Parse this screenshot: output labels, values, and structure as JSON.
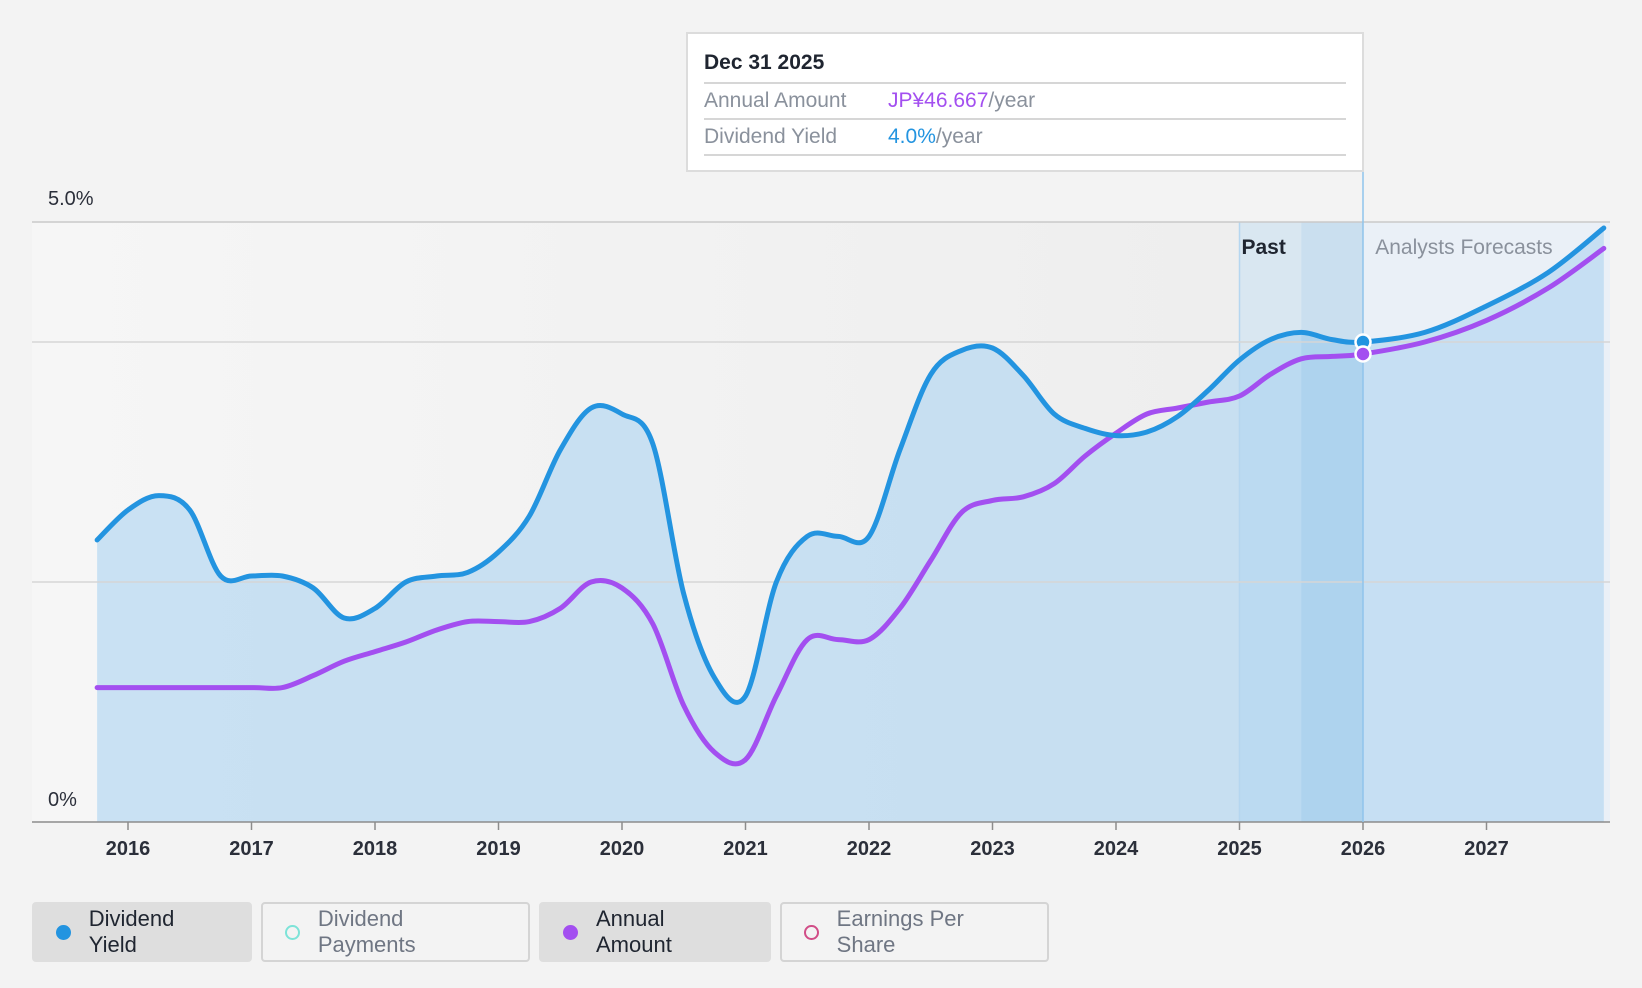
{
  "tooltip": {
    "date": "Dec 31 2025",
    "rows": [
      {
        "label": "Annual Amount",
        "value": "JP¥46.667",
        "unit": "/year"
      },
      {
        "label": "Dividend Yield",
        "value": "4.0%",
        "unit": "/year"
      }
    ]
  },
  "legend": [
    {
      "label": "Dividend Yield",
      "active": true,
      "color": "#2394e0",
      "filled": true
    },
    {
      "label": "Dividend Payments",
      "active": false,
      "color": "#7de3d8",
      "filled": false
    },
    {
      "label": "Annual Amount",
      "active": true,
      "color": "#a34ff0",
      "filled": true
    },
    {
      "label": "Earnings Per Share",
      "active": false,
      "color": "#d14d87",
      "filled": false
    }
  ],
  "chart_data": {
    "type": "line",
    "y_axis": {
      "min_label": "0%",
      "max_label": "5.0%",
      "ylim": [
        0,
        5.0
      ]
    },
    "x_ticks": [
      "2016",
      "2017",
      "2018",
      "2019",
      "2020",
      "2021",
      "2022",
      "2023",
      "2024",
      "2025",
      "2026",
      "2027"
    ],
    "xlim": [
      2015.5,
      2027.95
    ],
    "bands": {
      "past_label": "Past",
      "forecast_label": "Analysts Forecasts",
      "past_start": 2025.0,
      "forecast_start": 2025.5,
      "forecast_end": 2026.0
    },
    "cursor_x": 2026.0,
    "series": [
      {
        "name": "Dividend Yield",
        "color": "#2394e0",
        "points": [
          [
            2015.75,
            2.35
          ],
          [
            2016.0,
            2.6
          ],
          [
            2016.25,
            2.72
          ],
          [
            2016.5,
            2.6
          ],
          [
            2016.75,
            2.05
          ],
          [
            2017.0,
            2.05
          ],
          [
            2017.25,
            2.05
          ],
          [
            2017.5,
            1.95
          ],
          [
            2017.75,
            1.7
          ],
          [
            2018.0,
            1.78
          ],
          [
            2018.25,
            2.0
          ],
          [
            2018.5,
            2.05
          ],
          [
            2018.75,
            2.08
          ],
          [
            2019.0,
            2.25
          ],
          [
            2019.25,
            2.55
          ],
          [
            2019.5,
            3.1
          ],
          [
            2019.75,
            3.45
          ],
          [
            2020.0,
            3.4
          ],
          [
            2020.25,
            3.15
          ],
          [
            2020.5,
            1.9
          ],
          [
            2020.75,
            1.2
          ],
          [
            2021.0,
            1.05
          ],
          [
            2021.25,
            2.0
          ],
          [
            2021.5,
            2.38
          ],
          [
            2021.75,
            2.38
          ],
          [
            2022.0,
            2.38
          ],
          [
            2022.25,
            3.1
          ],
          [
            2022.5,
            3.73
          ],
          [
            2022.75,
            3.93
          ],
          [
            2023.0,
            3.95
          ],
          [
            2023.25,
            3.72
          ],
          [
            2023.5,
            3.4
          ],
          [
            2023.75,
            3.28
          ],
          [
            2024.0,
            3.22
          ],
          [
            2024.25,
            3.25
          ],
          [
            2024.5,
            3.38
          ],
          [
            2024.75,
            3.6
          ],
          [
            2025.0,
            3.85
          ],
          [
            2025.25,
            4.02
          ],
          [
            2025.5,
            4.08
          ],
          [
            2025.75,
            4.02
          ],
          [
            2026.0,
            4.0
          ],
          [
            2026.5,
            4.08
          ],
          [
            2027.0,
            4.3
          ],
          [
            2027.5,
            4.58
          ],
          [
            2027.95,
            4.95
          ]
        ]
      },
      {
        "name": "Annual Amount",
        "color": "#a34ff0",
        "points": [
          [
            2015.75,
            1.12
          ],
          [
            2016.0,
            1.12
          ],
          [
            2016.5,
            1.12
          ],
          [
            2017.0,
            1.12
          ],
          [
            2017.25,
            1.12
          ],
          [
            2017.5,
            1.22
          ],
          [
            2017.75,
            1.34
          ],
          [
            2018.0,
            1.42
          ],
          [
            2018.25,
            1.5
          ],
          [
            2018.5,
            1.6
          ],
          [
            2018.75,
            1.67
          ],
          [
            2019.0,
            1.67
          ],
          [
            2019.25,
            1.67
          ],
          [
            2019.5,
            1.78
          ],
          [
            2019.75,
            2.0
          ],
          [
            2020.0,
            1.95
          ],
          [
            2020.25,
            1.65
          ],
          [
            2020.5,
            0.97
          ],
          [
            2020.75,
            0.58
          ],
          [
            2021.0,
            0.52
          ],
          [
            2021.25,
            1.05
          ],
          [
            2021.5,
            1.52
          ],
          [
            2021.75,
            1.52
          ],
          [
            2022.0,
            1.52
          ],
          [
            2022.25,
            1.78
          ],
          [
            2022.5,
            2.18
          ],
          [
            2022.75,
            2.58
          ],
          [
            2023.0,
            2.68
          ],
          [
            2023.25,
            2.71
          ],
          [
            2023.5,
            2.82
          ],
          [
            2023.75,
            3.05
          ],
          [
            2024.0,
            3.24
          ],
          [
            2024.25,
            3.4
          ],
          [
            2024.5,
            3.45
          ],
          [
            2024.75,
            3.5
          ],
          [
            2025.0,
            3.55
          ],
          [
            2025.25,
            3.73
          ],
          [
            2025.5,
            3.86
          ],
          [
            2025.75,
            3.88
          ],
          [
            2026.0,
            3.9
          ],
          [
            2026.5,
            4.0
          ],
          [
            2027.0,
            4.18
          ],
          [
            2027.5,
            4.45
          ],
          [
            2027.95,
            4.78
          ]
        ]
      }
    ]
  }
}
